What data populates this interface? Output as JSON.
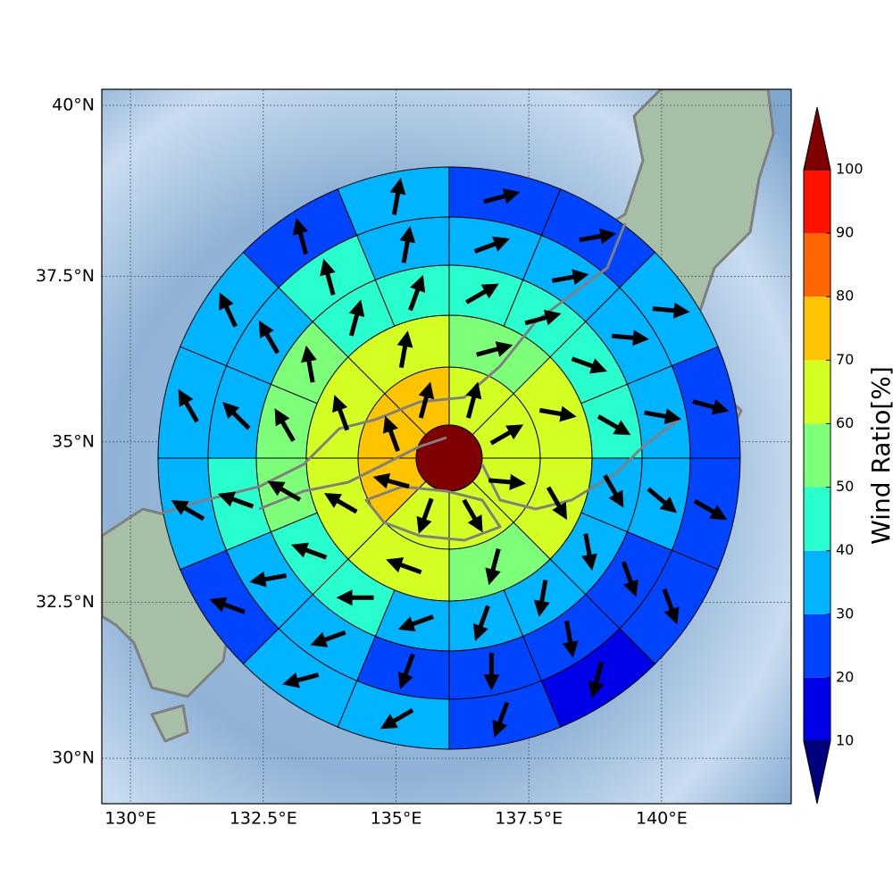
{
  "chart_data": {
    "type": "polar_sectors",
    "xlim": [
      129.46,
      142.44
    ],
    "ylim": [
      29.26,
      40.23
    ],
    "xticks": [
      {
        "value": 130,
        "label": "130°E"
      },
      {
        "value": 132.5,
        "label": "132.5°E"
      },
      {
        "value": 135,
        "label": "135°E"
      },
      {
        "value": 137.5,
        "label": "137.5°E"
      },
      {
        "value": 140,
        "label": "140°E"
      }
    ],
    "yticks": [
      {
        "value": 30,
        "label": "30°N"
      },
      {
        "value": 32.5,
        "label": "32.5°N"
      },
      {
        "value": 35,
        "label": "35°N"
      },
      {
        "value": 37.5,
        "label": "37.5°N"
      },
      {
        "value": 40,
        "label": "40°N"
      }
    ],
    "grid": true,
    "center_lon": 136,
    "center_lat": 34.75,
    "center_value": 105,
    "rings": [
      {
        "values": [
          65,
          65,
          65,
          65,
          65,
          75,
          75,
          75
        ],
        "directions": [
          15,
          60,
          95,
          150,
          200,
          285,
          340,
          15
        ]
      },
      {
        "values": [
          55,
          65,
          65,
          55,
          65,
          65,
          65,
          65
        ],
        "directions": [
          75,
          100,
          150,
          195,
          290,
          300,
          340,
          10
        ]
      },
      {
        "values": [
          45,
          45,
          45,
          45,
          35,
          35,
          35,
          35,
          35,
          45,
          45,
          55,
          55,
          55,
          45,
          45
        ],
        "directions": [
          60,
          75,
          110,
          120,
          150,
          170,
          190,
          200,
          250,
          270,
          290,
          300,
          330,
          350,
          15,
          20
        ]
      },
      {
        "values": [
          35,
          35,
          35,
          35,
          35,
          25,
          25,
          25,
          25,
          35,
          35,
          45,
          35,
          35,
          45,
          35
        ],
        "directions": [
          70,
          80,
          95,
          100,
          130,
          160,
          170,
          180,
          200,
          250,
          260,
          290,
          315,
          330,
          345,
          10
        ]
      },
      {
        "values": [
          25,
          25,
          35,
          25,
          25,
          25,
          15,
          25,
          35,
          35,
          25,
          35,
          35,
          35,
          25,
          35
        ],
        "directions": [
          75,
          80,
          95,
          105,
          120,
          160,
          195,
          200,
          240,
          255,
          290,
          300,
          330,
          335,
          345,
          10
        ]
      }
    ],
    "colorbar": {
      "label": "Wind Ratio[%]",
      "levels": [
        10,
        20,
        30,
        40,
        50,
        60,
        70,
        80,
        90,
        100
      ],
      "colors": [
        "#0000e8",
        "#0044ff",
        "#00b4ff",
        "#29ffce",
        "#7dff7a",
        "#d4ff23",
        "#ffc400",
        "#ff6600",
        "#ff1200"
      ],
      "under_color": "#00007f",
      "over_color": "#7f0000"
    }
  }
}
